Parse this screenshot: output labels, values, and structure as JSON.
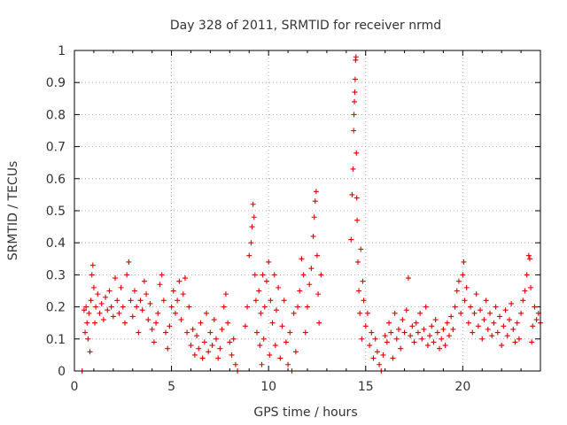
{
  "chart_data": {
    "type": "scatter",
    "title": "Day 328 of 2011, SRMTID for receiver nrmd",
    "xlabel": "GPS time / hours",
    "ylabel": "SRMTID / TECUs",
    "xlim": [
      0,
      24
    ],
    "ylim": [
      0,
      1
    ],
    "xticks": [
      0,
      5,
      10,
      15,
      20
    ],
    "xtick_labels": [
      "0",
      "5",
      "10",
      "15",
      "20"
    ],
    "yticks": [
      0,
      0.1,
      0.2,
      0.3,
      0.4,
      0.5,
      0.6,
      0.7,
      0.8,
      0.9,
      1
    ],
    "ytick_labels": [
      "0",
      "0.1",
      "0.2",
      "0.3",
      "0.4",
      "0.5",
      "0.6",
      "0.7",
      "0.8",
      "0.9",
      "1"
    ],
    "grid": true,
    "marker": "+",
    "color": "#e00000",
    "series": [
      {
        "name": "SRMTID",
        "points": [
          [
            0.4,
            0.0
          ],
          [
            0.5,
            0.19
          ],
          [
            0.55,
            0.12
          ],
          [
            0.6,
            0.2
          ],
          [
            0.65,
            0.15
          ],
          [
            0.7,
            0.1
          ],
          [
            0.75,
            0.18
          ],
          [
            0.8,
            0.06
          ],
          [
            0.85,
            0.22
          ],
          [
            0.9,
            0.3
          ],
          [
            0.95,
            0.33
          ],
          [
            1.0,
            0.26
          ],
          [
            1.05,
            0.15
          ],
          [
            1.1,
            0.2
          ],
          [
            1.2,
            0.24
          ],
          [
            1.3,
            0.18
          ],
          [
            1.4,
            0.21
          ],
          [
            1.5,
            0.16
          ],
          [
            1.6,
            0.23
          ],
          [
            1.7,
            0.19
          ],
          [
            1.8,
            0.25
          ],
          [
            1.9,
            0.2
          ],
          [
            2.0,
            0.17
          ],
          [
            2.1,
            0.29
          ],
          [
            2.2,
            0.22
          ],
          [
            2.3,
            0.18
          ],
          [
            2.4,
            0.26
          ],
          [
            2.5,
            0.2
          ],
          [
            2.6,
            0.15
          ],
          [
            2.7,
            0.3
          ],
          [
            2.8,
            0.34
          ],
          [
            2.9,
            0.22
          ],
          [
            3.0,
            0.17
          ],
          [
            3.1,
            0.25
          ],
          [
            3.2,
            0.2
          ],
          [
            3.3,
            0.12
          ],
          [
            3.4,
            0.22
          ],
          [
            3.5,
            0.19
          ],
          [
            3.6,
            0.28
          ],
          [
            3.7,
            0.24
          ],
          [
            3.8,
            0.16
          ],
          [
            3.9,
            0.21
          ],
          [
            4.0,
            0.13
          ],
          [
            4.1,
            0.09
          ],
          [
            4.2,
            0.15
          ],
          [
            4.3,
            0.18
          ],
          [
            4.4,
            0.27
          ],
          [
            4.5,
            0.3
          ],
          [
            4.6,
            0.22
          ],
          [
            4.7,
            0.12
          ],
          [
            4.8,
            0.07
          ],
          [
            4.9,
            0.14
          ],
          [
            5.0,
            0.2
          ],
          [
            5.1,
            0.25
          ],
          [
            5.2,
            0.18
          ],
          [
            5.3,
            0.22
          ],
          [
            5.4,
            0.28
          ],
          [
            5.5,
            0.16
          ],
          [
            5.6,
            0.24
          ],
          [
            5.7,
            0.29
          ],
          [
            5.8,
            0.12
          ],
          [
            5.9,
            0.2
          ],
          [
            6.0,
            0.08
          ],
          [
            6.1,
            0.13
          ],
          [
            6.2,
            0.05
          ],
          [
            6.3,
            0.11
          ],
          [
            6.4,
            0.07
          ],
          [
            6.5,
            0.15
          ],
          [
            6.6,
            0.04
          ],
          [
            6.7,
            0.09
          ],
          [
            6.8,
            0.18
          ],
          [
            6.9,
            0.06
          ],
          [
            7.0,
            0.12
          ],
          [
            7.1,
            0.08
          ],
          [
            7.2,
            0.16
          ],
          [
            7.3,
            0.1
          ],
          [
            7.4,
            0.04
          ],
          [
            7.5,
            0.07
          ],
          [
            7.6,
            0.13
          ],
          [
            7.7,
            0.2
          ],
          [
            7.8,
            0.24
          ],
          [
            7.9,
            0.15
          ],
          [
            8.0,
            0.09
          ],
          [
            8.1,
            0.05
          ],
          [
            8.2,
            0.1
          ],
          [
            8.3,
            0.02
          ],
          [
            8.4,
            0.0
          ],
          [
            8.8,
            0.14
          ],
          [
            8.9,
            0.2
          ],
          [
            9.0,
            0.36
          ],
          [
            9.1,
            0.4
          ],
          [
            9.15,
            0.45
          ],
          [
            9.2,
            0.52
          ],
          [
            9.25,
            0.48
          ],
          [
            9.3,
            0.3
          ],
          [
            9.35,
            0.22
          ],
          [
            9.4,
            0.12
          ],
          [
            9.5,
            0.25
          ],
          [
            9.55,
            0.08
          ],
          [
            9.6,
            0.18
          ],
          [
            9.65,
            0.02
          ],
          [
            9.7,
            0.3
          ],
          [
            9.75,
            0.1
          ],
          [
            9.8,
            0.2
          ],
          [
            9.9,
            0.28
          ],
          [
            10.0,
            0.34
          ],
          [
            10.05,
            0.05
          ],
          [
            10.1,
            0.22
          ],
          [
            10.2,
            0.15
          ],
          [
            10.3,
            0.3
          ],
          [
            10.35,
            0.08
          ],
          [
            10.4,
            0.19
          ],
          [
            10.5,
            0.26
          ],
          [
            10.6,
            0.04
          ],
          [
            10.7,
            0.14
          ],
          [
            10.8,
            0.22
          ],
          [
            10.9,
            0.09
          ],
          [
            11.0,
            0.02
          ],
          [
            11.1,
            0.12
          ],
          [
            11.2,
            0.0
          ],
          [
            11.3,
            0.18
          ],
          [
            11.4,
            0.06
          ],
          [
            11.5,
            0.2
          ],
          [
            11.6,
            0.25
          ],
          [
            11.7,
            0.35
          ],
          [
            11.8,
            0.3
          ],
          [
            11.9,
            0.12
          ],
          [
            12.0,
            0.2
          ],
          [
            12.1,
            0.27
          ],
          [
            12.2,
            0.32
          ],
          [
            12.3,
            0.42
          ],
          [
            12.35,
            0.48
          ],
          [
            12.4,
            0.53
          ],
          [
            12.45,
            0.56
          ],
          [
            12.5,
            0.36
          ],
          [
            12.55,
            0.24
          ],
          [
            12.6,
            0.15
          ],
          [
            12.7,
            0.3
          ],
          [
            14.25,
            0.41
          ],
          [
            14.3,
            0.55
          ],
          [
            14.35,
            0.63
          ],
          [
            14.38,
            0.75
          ],
          [
            14.4,
            0.8
          ],
          [
            14.42,
            0.84
          ],
          [
            14.44,
            0.87
          ],
          [
            14.46,
            0.91
          ],
          [
            14.48,
            0.97
          ],
          [
            14.5,
            0.98
          ],
          [
            14.52,
            0.68
          ],
          [
            14.54,
            0.54
          ],
          [
            14.56,
            0.47
          ],
          [
            14.6,
            0.34
          ],
          [
            14.65,
            0.25
          ],
          [
            14.7,
            0.18
          ],
          [
            14.75,
            0.38
          ],
          [
            14.8,
            0.1
          ],
          [
            14.85,
            0.28
          ],
          [
            14.9,
            0.22
          ],
          [
            15.0,
            0.14
          ],
          [
            15.1,
            0.18
          ],
          [
            15.2,
            0.08
          ],
          [
            15.3,
            0.12
          ],
          [
            15.4,
            0.04
          ],
          [
            15.5,
            0.1
          ],
          [
            15.6,
            0.06
          ],
          [
            15.7,
            0.02
          ],
          [
            15.8,
            0.0
          ],
          [
            15.9,
            0.05
          ],
          [
            16.0,
            0.11
          ],
          [
            16.1,
            0.09
          ],
          [
            16.2,
            0.15
          ],
          [
            16.3,
            0.12
          ],
          [
            16.4,
            0.04
          ],
          [
            16.5,
            0.18
          ],
          [
            16.6,
            0.1
          ],
          [
            16.7,
            0.13
          ],
          [
            16.8,
            0.07
          ],
          [
            16.9,
            0.16
          ],
          [
            17.0,
            0.12
          ],
          [
            17.1,
            0.19
          ],
          [
            17.2,
            0.29
          ],
          [
            17.3,
            0.11
          ],
          [
            17.4,
            0.14
          ],
          [
            17.5,
            0.09
          ],
          [
            17.6,
            0.15
          ],
          [
            17.7,
            0.12
          ],
          [
            17.8,
            0.18
          ],
          [
            17.9,
            0.1
          ],
          [
            18.0,
            0.13
          ],
          [
            18.1,
            0.2
          ],
          [
            18.2,
            0.08
          ],
          [
            18.3,
            0.11
          ],
          [
            18.4,
            0.14
          ],
          [
            18.5,
            0.09
          ],
          [
            18.6,
            0.16
          ],
          [
            18.7,
            0.12
          ],
          [
            18.8,
            0.07
          ],
          [
            18.9,
            0.1
          ],
          [
            19.0,
            0.13
          ],
          [
            19.1,
            0.08
          ],
          [
            19.2,
            0.15
          ],
          [
            19.3,
            0.11
          ],
          [
            19.4,
            0.17
          ],
          [
            19.5,
            0.13
          ],
          [
            19.6,
            0.2
          ],
          [
            19.7,
            0.25
          ],
          [
            19.8,
            0.28
          ],
          [
            19.9,
            0.18
          ],
          [
            20.0,
            0.3
          ],
          [
            20.05,
            0.34
          ],
          [
            20.1,
            0.22
          ],
          [
            20.2,
            0.26
          ],
          [
            20.3,
            0.15
          ],
          [
            20.4,
            0.2
          ],
          [
            20.5,
            0.12
          ],
          [
            20.6,
            0.18
          ],
          [
            20.7,
            0.24
          ],
          [
            20.8,
            0.14
          ],
          [
            20.9,
            0.19
          ],
          [
            21.0,
            0.1
          ],
          [
            21.1,
            0.16
          ],
          [
            21.2,
            0.22
          ],
          [
            21.3,
            0.13
          ],
          [
            21.4,
            0.18
          ],
          [
            21.5,
            0.11
          ],
          [
            21.6,
            0.15
          ],
          [
            21.7,
            0.2
          ],
          [
            21.8,
            0.12
          ],
          [
            21.9,
            0.17
          ],
          [
            22.0,
            0.08
          ],
          [
            22.1,
            0.14
          ],
          [
            22.2,
            0.19
          ],
          [
            22.3,
            0.11
          ],
          [
            22.4,
            0.16
          ],
          [
            22.5,
            0.21
          ],
          [
            22.6,
            0.13
          ],
          [
            22.7,
            0.09
          ],
          [
            22.8,
            0.15
          ],
          [
            22.9,
            0.1
          ],
          [
            23.0,
            0.18
          ],
          [
            23.1,
            0.22
          ],
          [
            23.2,
            0.25
          ],
          [
            23.3,
            0.3
          ],
          [
            23.4,
            0.36
          ],
          [
            23.45,
            0.35
          ],
          [
            23.5,
            0.26
          ],
          [
            23.55,
            0.09
          ],
          [
            23.6,
            0.14
          ],
          [
            23.7,
            0.2
          ],
          [
            23.8,
            0.16
          ],
          [
            23.9,
            0.18
          ],
          [
            24.0,
            0.15
          ]
        ]
      }
    ]
  }
}
